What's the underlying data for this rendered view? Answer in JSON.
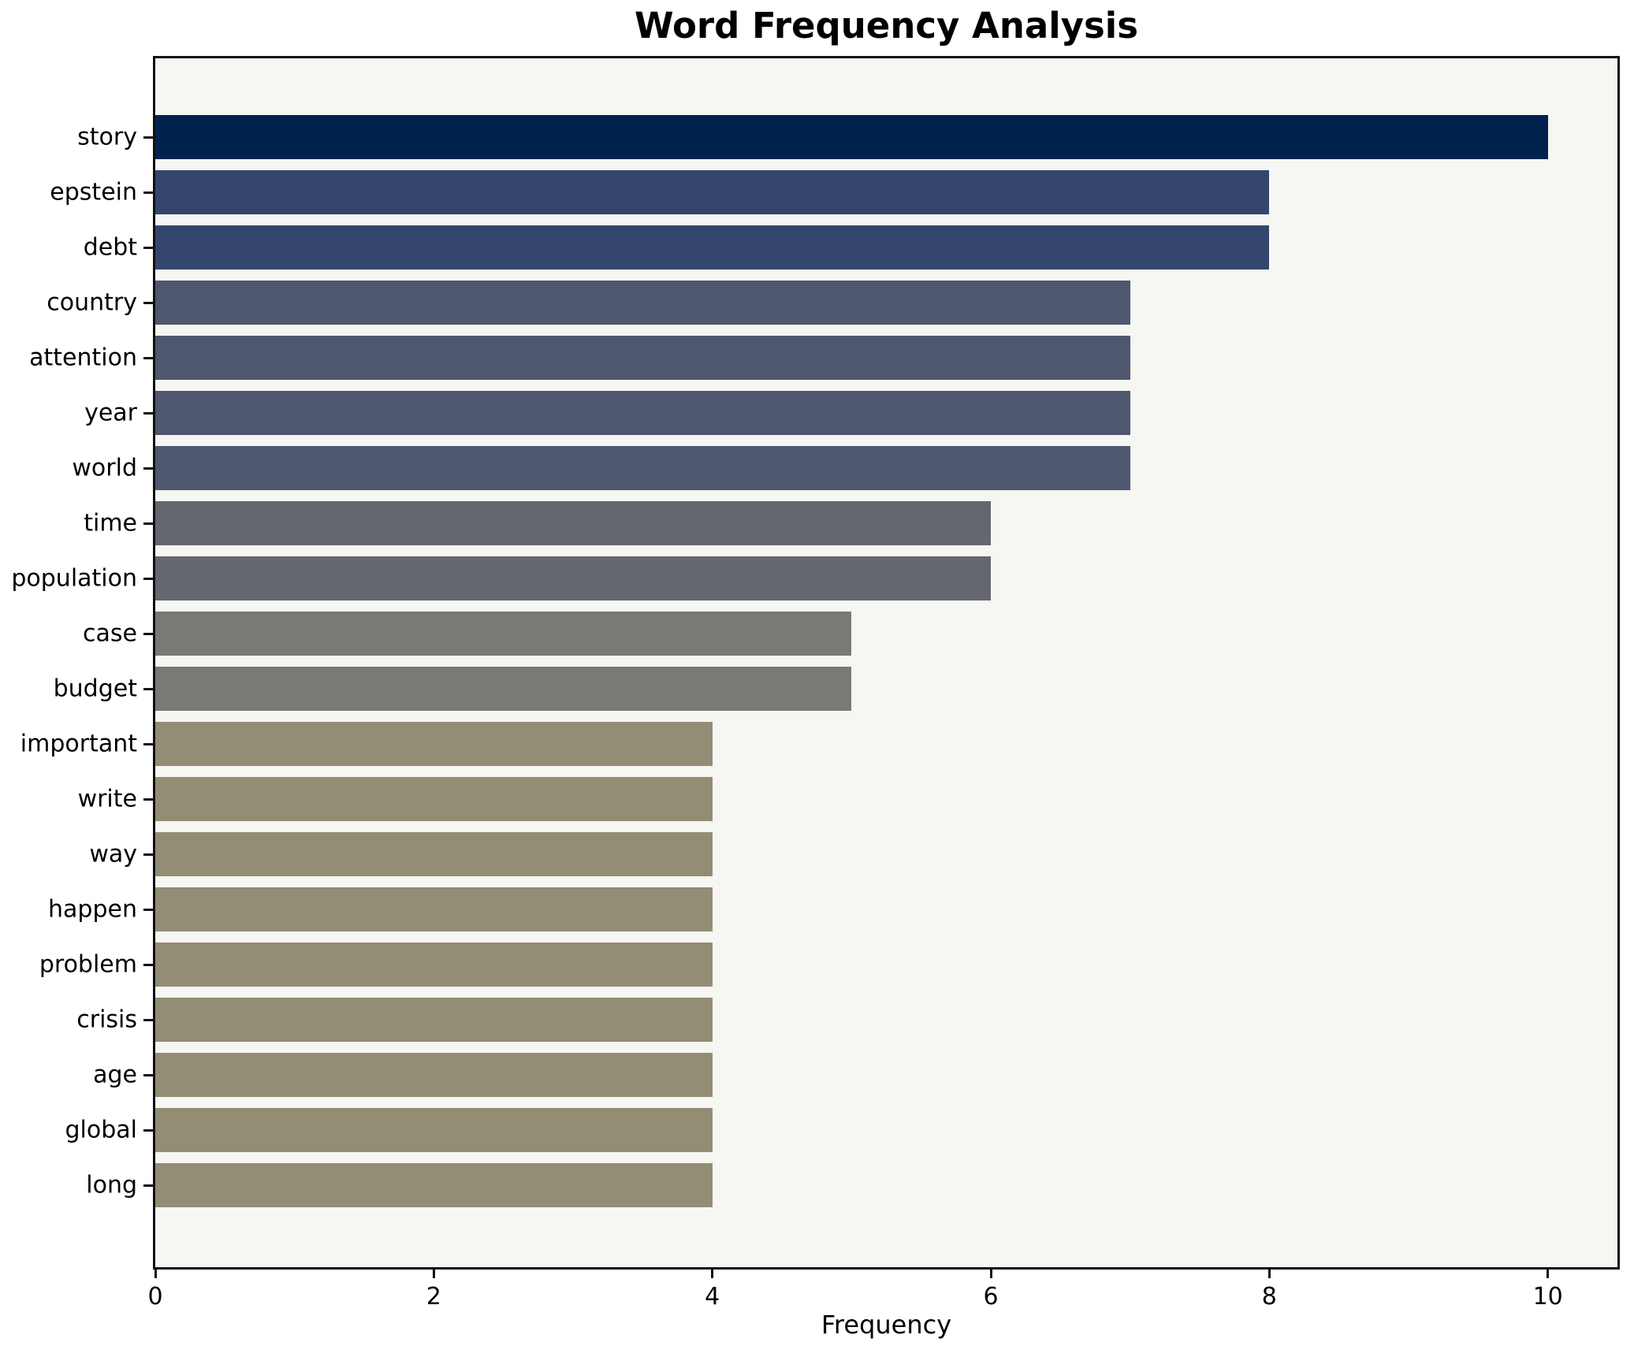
{
  "chart_data": {
    "type": "bar",
    "orientation": "horizontal",
    "title": "Word Frequency Analysis",
    "xlabel": "Frequency",
    "ylabel": "",
    "categories": [
      "story",
      "epstein",
      "debt",
      "country",
      "attention",
      "year",
      "world",
      "time",
      "population",
      "case",
      "budget",
      "important",
      "write",
      "way",
      "happen",
      "problem",
      "crisis",
      "age",
      "global",
      "long"
    ],
    "values": [
      10,
      8,
      8,
      7,
      7,
      7,
      7,
      6,
      6,
      5,
      5,
      4,
      4,
      4,
      4,
      4,
      4,
      4,
      4,
      4
    ],
    "bar_colors": [
      "#00224e",
      "#35466e",
      "#35466e",
      "#4e576e",
      "#4e576e",
      "#4e576e",
      "#4e576e",
      "#64676f",
      "#64676f",
      "#7a7973",
      "#7a7973",
      "#938d75",
      "#938d75",
      "#938d75",
      "#938d75",
      "#938d75",
      "#938d75",
      "#938d75",
      "#938d75",
      "#938d75"
    ],
    "x_ticks": [
      0,
      2,
      4,
      6,
      8,
      10
    ],
    "xlim": [
      0,
      10.5
    ],
    "grid": false,
    "legend": null,
    "plot_background": "#f6f6f3",
    "figure_background": "#ffffff",
    "spine_color": "#111111",
    "text_color": "#000000"
  }
}
